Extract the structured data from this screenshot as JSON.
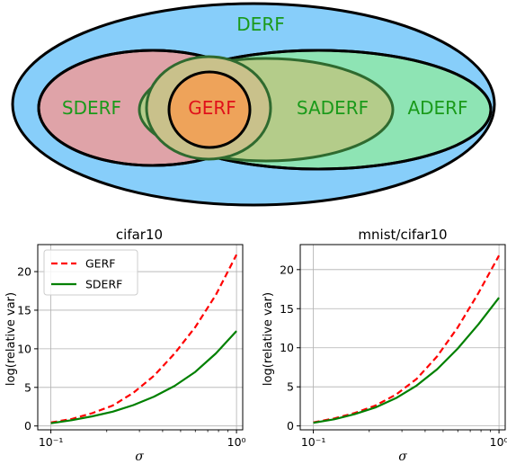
{
  "venn": {
    "sets": [
      "DERF",
      "SDERF",
      "ADERF",
      "SADERF",
      "GERF"
    ],
    "colors": {
      "DERF": "#87cefa",
      "SDERF": "#dfa3a8",
      "ADERF": "#8ee4b4",
      "SADERF": "#b4cc8a",
      "GERF": "#eea35a",
      "label_green": "#1a9a1a",
      "label_red": "#e0101a"
    }
  },
  "chart_data": [
    {
      "type": "line",
      "title": "cifar10",
      "xlabel": "σ",
      "ylabel": "log(relative var)",
      "xscale": "log",
      "xlim": [
        0.085,
        1.08
      ],
      "ylim": [
        -0.5,
        23.5
      ],
      "yticks": [
        0,
        5,
        10,
        15,
        20
      ],
      "xticks": [
        0.1,
        1.0
      ],
      "xtick_labels": [
        "10⁻¹",
        "10⁰"
      ],
      "grid": true,
      "legend": "top-left",
      "x": [
        0.1,
        0.1292,
        0.1668,
        0.2154,
        0.2783,
        0.3594,
        0.4642,
        0.5995,
        0.7743,
        1.0
      ],
      "series": [
        {
          "name": "GERF",
          "color": "#ff0000",
          "style": "dashed",
          "values": [
            0.45,
            0.9,
            1.65,
            2.65,
            4.3,
            6.5,
            9.4,
            12.8,
            17.0,
            22.2
          ]
        },
        {
          "name": "SDERF",
          "color": "#008000",
          "style": "solid",
          "values": [
            0.35,
            0.75,
            1.25,
            1.85,
            2.7,
            3.8,
            5.2,
            7.0,
            9.4,
            12.3
          ]
        }
      ]
    },
    {
      "type": "line",
      "title": "mnist/cifar10",
      "xlabel": "σ",
      "ylabel": "log(relative var)",
      "xscale": "log",
      "xlim": [
        0.085,
        1.08
      ],
      "ylim": [
        -0.5,
        23.2
      ],
      "yticks": [
        0,
        5,
        10,
        15,
        20
      ],
      "xticks": [
        0.1,
        1.0
      ],
      "xtick_labels": [
        "10⁻¹",
        "10⁰"
      ],
      "grid": true,
      "x": [
        0.1,
        0.1292,
        0.1668,
        0.2154,
        0.2783,
        0.3594,
        0.4642,
        0.5995,
        0.7743,
        1.0
      ],
      "series": [
        {
          "name": "GERF",
          "color": "#ff0000",
          "style": "dashed",
          "values": [
            0.45,
            0.95,
            1.65,
            2.6,
            4.0,
            6.0,
            8.9,
            12.6,
            17.0,
            21.8
          ]
        },
        {
          "name": "SDERF",
          "color": "#008000",
          "style": "solid",
          "values": [
            0.4,
            0.85,
            1.5,
            2.35,
            3.55,
            5.15,
            7.25,
            9.9,
            13.0,
            16.4
          ]
        }
      ]
    }
  ]
}
